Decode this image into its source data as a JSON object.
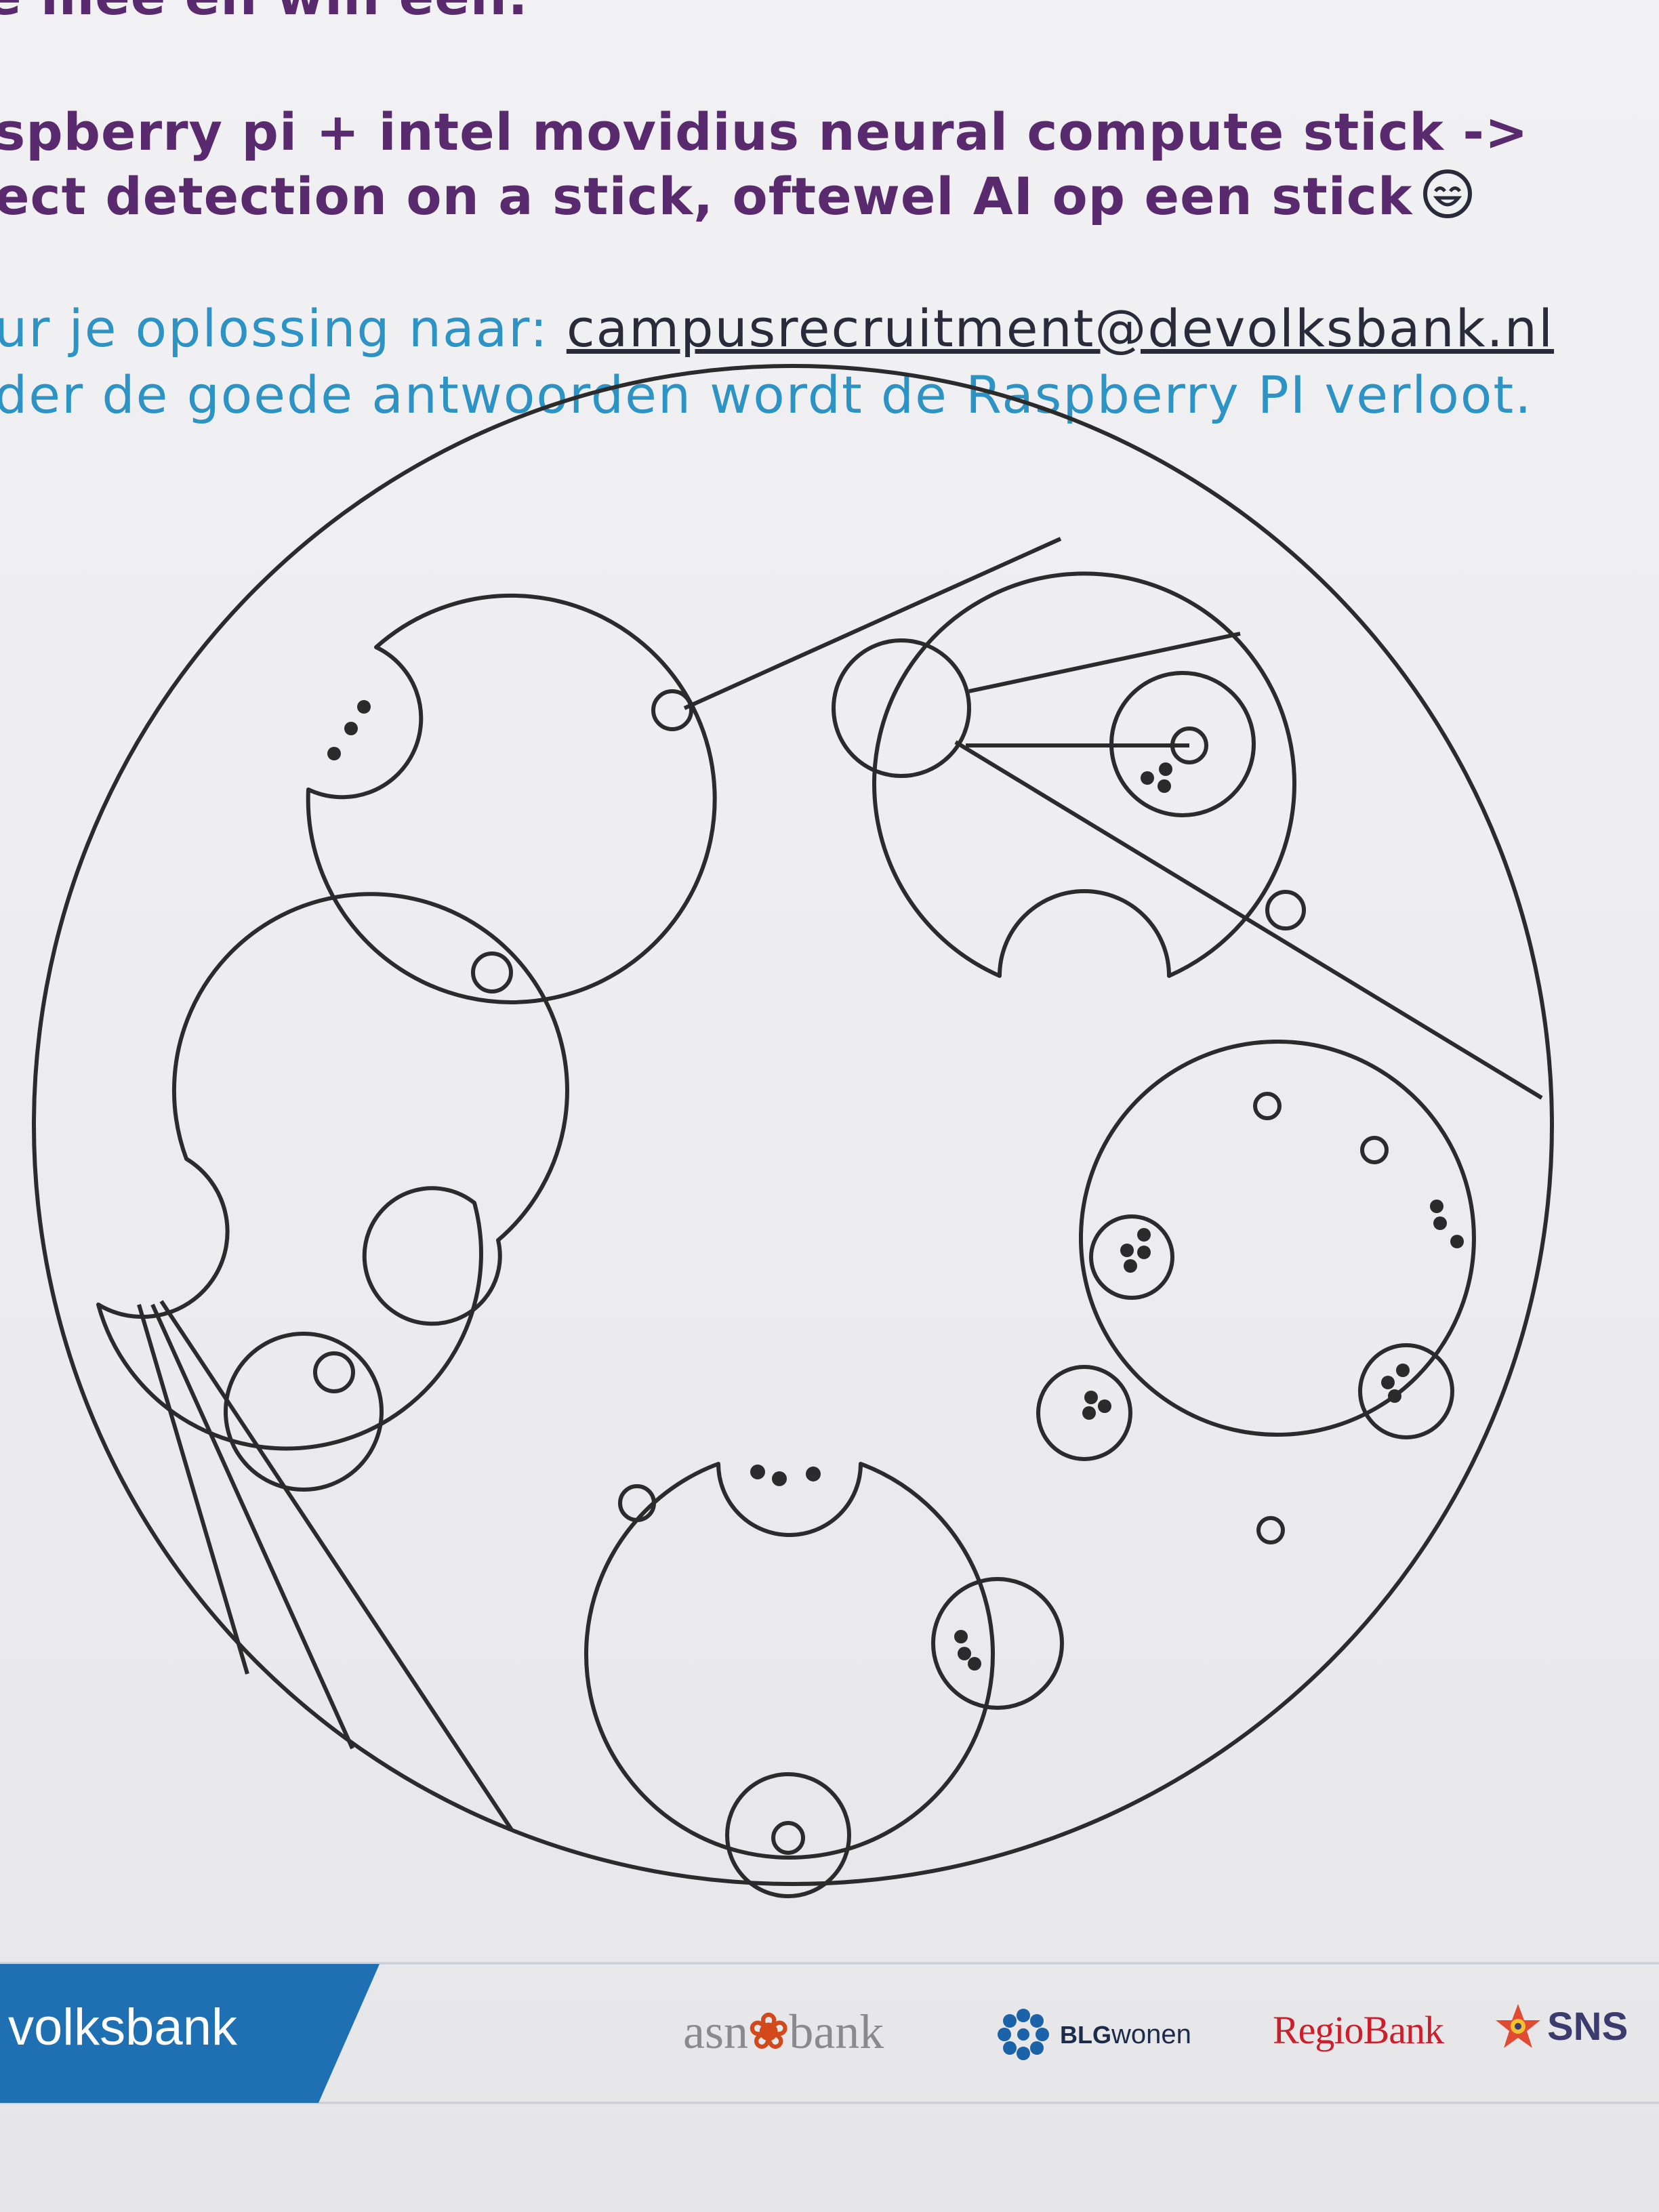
{
  "heading": {
    "top_fragment": "e mee en win een:",
    "prize_line_1": "spberry pi + intel movidius neural compute stick ->",
    "prize_line_2": "ect detection on a stick, oftewel AI op een stick"
  },
  "instructions": {
    "send_prefix": "ur je oplossing naar: ",
    "email": "campusrecruitment@devolksbank.nl",
    "raffle_line": "der de goede antwoorden wordt de Raspberry PI verloot."
  },
  "footer": {
    "volksbank_label": "volksbank",
    "asn_left": "asn",
    "asn_right": "bank",
    "blg_bold": "BLG",
    "blg_rest": "wonen",
    "regiobank": "RegioBank",
    "sns": "SNS"
  },
  "colors": {
    "heading_purple": "#5a2a6e",
    "instruction_blue": "#2d93c4",
    "volksbank_blue": "#1f6fb3",
    "ink": "#2b2b2b"
  },
  "icons": {
    "smiley": "smiley-face-icon",
    "asn_mark": "asn-swirl-icon",
    "blg_mark": "blg-rosette-icon",
    "sns_mark": "sns-star-icon"
  }
}
